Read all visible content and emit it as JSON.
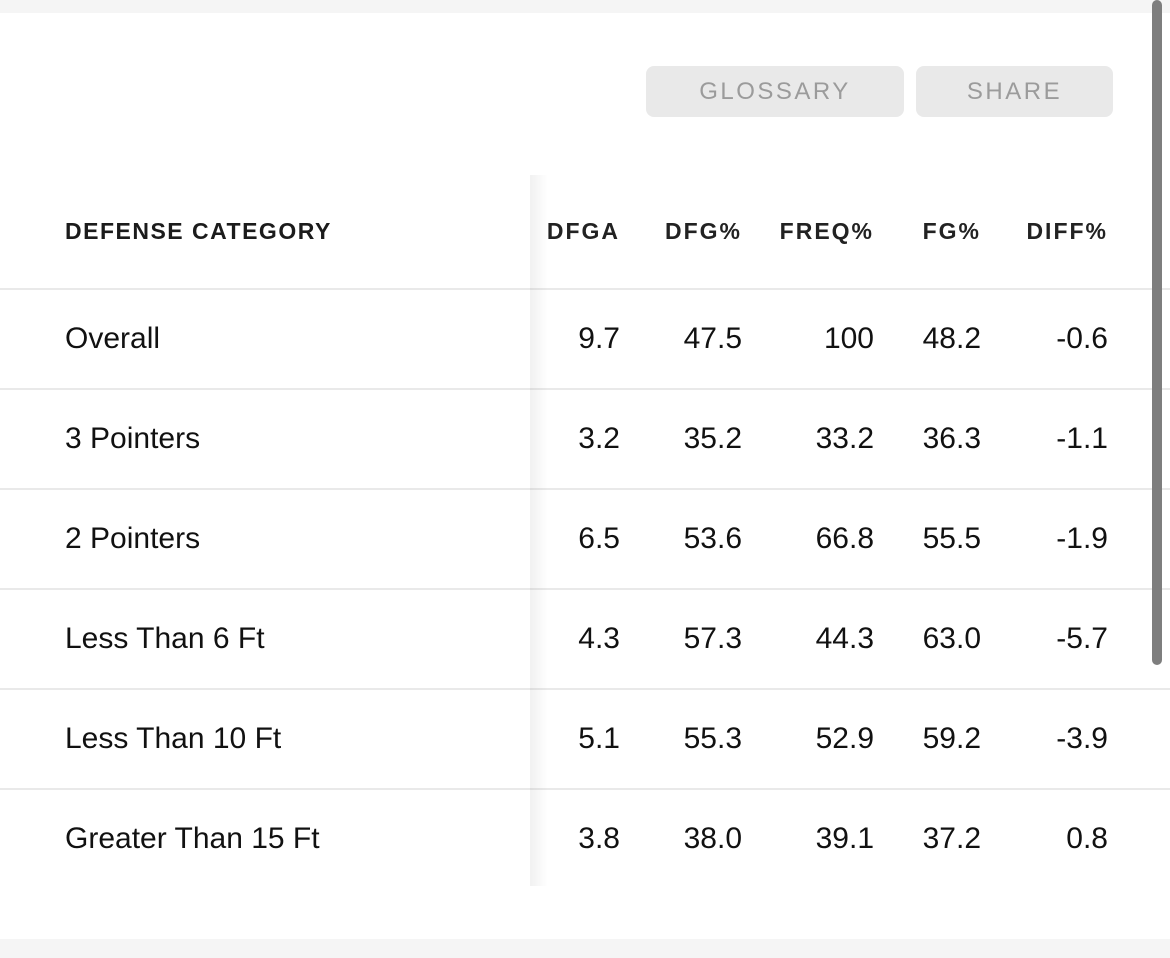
{
  "buttons": {
    "glossary": "GLOSSARY",
    "share": "SHARE"
  },
  "table": {
    "category_header": "DEFENSE CATEGORY",
    "columns": [
      "DFGA",
      "DFG%",
      "FREQ%",
      "FG%",
      "DIFF%"
    ],
    "rows": [
      {
        "category": "Overall",
        "values": [
          "9.7",
          "47.5",
          "100",
          "48.2",
          "-0.6"
        ]
      },
      {
        "category": "3 Pointers",
        "values": [
          "3.2",
          "35.2",
          "33.2",
          "36.3",
          "-1.1"
        ]
      },
      {
        "category": "2 Pointers",
        "values": [
          "6.5",
          "53.6",
          "66.8",
          "55.5",
          "-1.9"
        ]
      },
      {
        "category": "Less Than 6 Ft",
        "values": [
          "4.3",
          "57.3",
          "44.3",
          "63.0",
          "-5.7"
        ]
      },
      {
        "category": "Less Than 10 Ft",
        "values": [
          "5.1",
          "55.3",
          "52.9",
          "59.2",
          "-3.9"
        ]
      },
      {
        "category": "Greater Than 15 Ft",
        "values": [
          "3.8",
          "38.0",
          "39.1",
          "37.2",
          "0.8"
        ]
      }
    ]
  },
  "colors": {
    "button_background": "#e9e9e9",
    "button_text": "#9b9b9b",
    "row_divider": "#e9e9e9",
    "header_text": "#1b1b1b",
    "data_text": "#111111",
    "edge_strip": "#f5f5f5",
    "scrollbar_thumb": "#7e7e7e"
  }
}
